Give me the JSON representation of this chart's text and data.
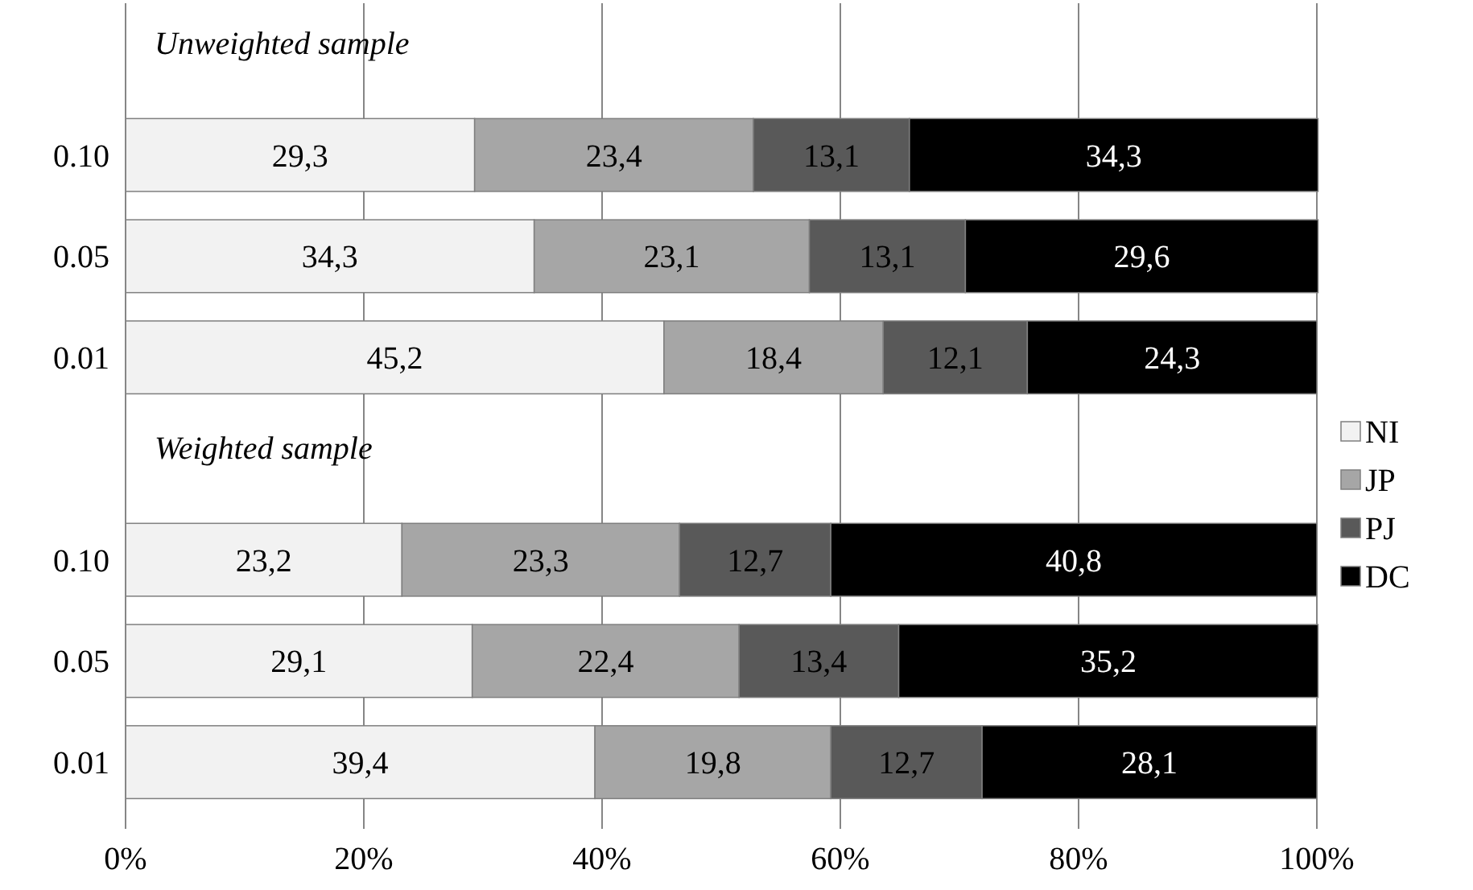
{
  "chart_data": {
    "type": "bar",
    "orientation": "horizontal",
    "stacked": true,
    "categories": [
      null,
      "0.10",
      "0.05",
      "0.01",
      null,
      "0.10",
      "0.05",
      "0.01"
    ],
    "series": [
      {
        "name": "NI",
        "color": "#f2f2f2",
        "values": [
          null,
          29.3,
          34.3,
          45.2,
          null,
          23.2,
          29.1,
          39.4
        ],
        "value_labels": [
          null,
          "29,3",
          "34,3",
          "45,2",
          null,
          "23,2",
          "29,1",
          "39,4"
        ]
      },
      {
        "name": "JP",
        "color": "#a6a6a6",
        "values": [
          null,
          23.4,
          23.1,
          18.4,
          null,
          23.3,
          22.4,
          19.8
        ],
        "value_labels": [
          null,
          "23,4",
          "23,1",
          "18,4",
          null,
          "23,3",
          "22,4",
          "19,8"
        ]
      },
      {
        "name": "PJ",
        "color": "#595959",
        "values": [
          null,
          13.1,
          13.1,
          12.1,
          null,
          12.7,
          13.4,
          12.7
        ],
        "value_labels": [
          null,
          "13,1",
          "13,1",
          "12,1",
          null,
          "12,7",
          "13,4",
          "12,7"
        ]
      },
      {
        "name": "DC",
        "color": "#000000",
        "values": [
          null,
          34.3,
          29.6,
          24.3,
          null,
          40.8,
          35.2,
          28.1
        ],
        "value_labels": [
          null,
          "34,3",
          "29,6",
          "24,3",
          null,
          "40,8",
          "35,2",
          "28,1"
        ]
      }
    ],
    "annotations": [
      "Unweighted sample",
      "Weighted sample"
    ],
    "xlim": [
      0,
      100
    ],
    "xticks": [
      {
        "value": 0,
        "label": "0%"
      },
      {
        "value": 20,
        "label": "20%"
      },
      {
        "value": 40,
        "label": "40%"
      },
      {
        "value": 60,
        "label": "60%"
      },
      {
        "value": 80,
        "label": "80%"
      },
      {
        "value": 100,
        "label": "100%"
      }
    ],
    "grid": "x",
    "legend": "right"
  }
}
